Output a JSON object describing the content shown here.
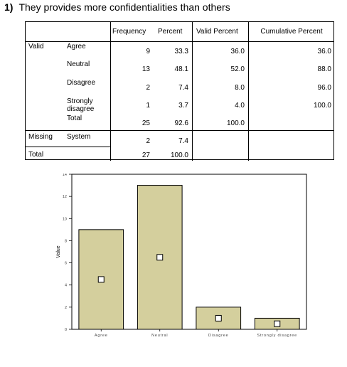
{
  "heading": {
    "number": "1)",
    "text": "They provides more confidentialities than others"
  },
  "table": {
    "headers": [
      "Frequency",
      "Percent",
      "Valid Percent",
      "Cumulative Percent"
    ],
    "groups": {
      "valid": "Valid",
      "missing": "Missing",
      "total": "Total"
    },
    "rows": [
      {
        "label": "Agree",
        "frequency": "9",
        "percent": "33.3",
        "valid_percent": "36.0",
        "cumulative": "36.0"
      },
      {
        "label": "Neutral",
        "frequency": "13",
        "percent": "48.1",
        "valid_percent": "52.0",
        "cumulative": "88.0"
      },
      {
        "label": "Disagree",
        "frequency": "2",
        "percent": "7.4",
        "valid_percent": "8.0",
        "cumulative": "96.0"
      },
      {
        "label": "Strongly disagree",
        "label_line1": "Strongly",
        "label_line2": "disagree",
        "frequency": "1",
        "percent": "3.7",
        "valid_percent": "4.0",
        "cumulative": "100.0"
      },
      {
        "label": "Total",
        "frequency": "25",
        "percent": "92.6",
        "valid_percent": "100.0",
        "cumulative": ""
      }
    ],
    "missing_row": {
      "label": "System",
      "frequency": "2",
      "percent": "7.4"
    },
    "total_row": {
      "frequency": "27",
      "percent": "100.0"
    }
  },
  "chart_data": {
    "type": "bar",
    "categories": [
      "Agree",
      "Neutral",
      "Disagree",
      "Strongly disagree"
    ],
    "values": [
      9,
      13,
      2,
      1
    ],
    "ylim": [
      0,
      14
    ],
    "yticks": [
      0,
      2,
      4,
      6,
      8,
      10,
      12,
      14
    ],
    "ylabel": "Value",
    "xlabel": "",
    "bar_color": "#d4cf9d",
    "grid": false
  }
}
